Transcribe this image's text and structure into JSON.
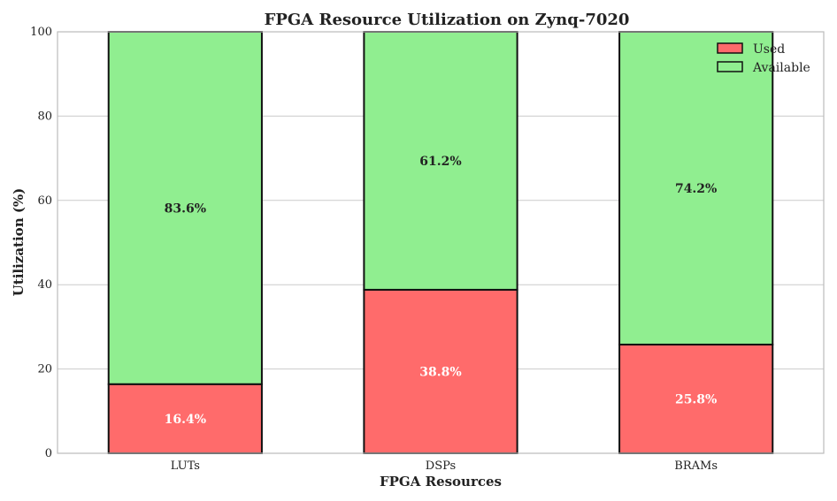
{
  "chart_data": {
    "type": "bar",
    "stacked": true,
    "title": "FPGA Resource Utilization on Zynq-7020",
    "xlabel": "FPGA Resources",
    "ylabel": "Utilization (%)",
    "categories": [
      "LUTs",
      "DSPs",
      "BRAMs"
    ],
    "series": [
      {
        "name": "Used",
        "values": [
          16.4,
          38.8,
          25.8
        ],
        "color": "#ff6b6b",
        "label_color": "#ffffff"
      },
      {
        "name": "Available",
        "values": [
          83.6,
          61.2,
          74.2
        ],
        "color": "#90ee90",
        "label_color": "#222222"
      }
    ],
    "data_labels": [
      [
        "16.4%",
        "38.8%",
        "25.8%"
      ],
      [
        "83.6%",
        "61.2%",
        "74.2%"
      ]
    ],
    "ylim": [
      0,
      100
    ],
    "yticks": [
      0,
      20,
      40,
      60,
      80,
      100
    ],
    "grid": true,
    "legend": "top-right"
  }
}
